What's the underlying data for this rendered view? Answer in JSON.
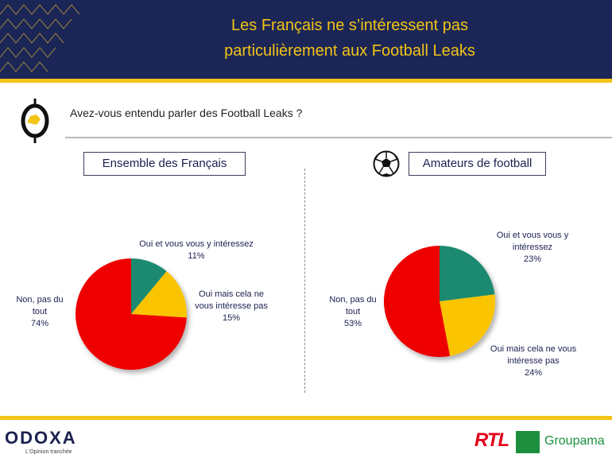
{
  "header": {
    "title_line1": "Les Français ne s’intéressent pas",
    "title_line2": "particulièrement aux Football Leaks",
    "bg_color": "#1b2657",
    "accent_color": "#f3c316"
  },
  "question": {
    "text": "Avez-vous entendu parler des Football Leaks ?",
    "icon": "odoxa-dollar-icon"
  },
  "chart_data": [
    {
      "type": "pie",
      "title": "Ensemble des Français",
      "slices": [
        {
          "label": "Oui et vous vous y intéressez",
          "value": 11,
          "display": "11%",
          "color": "#1f8a70"
        },
        {
          "label": "Oui mais cela ne vous intéresse pas",
          "value": 15,
          "display": "15%",
          "color": "#fbc400"
        },
        {
          "label": "Non, pas du tout",
          "value": 74,
          "display": "74%",
          "color": "#ee0000"
        }
      ]
    },
    {
      "type": "pie",
      "title": "Amateurs de football",
      "icon": "soccer-ball-icon",
      "slices": [
        {
          "label": "Oui et vous vous y intéressez",
          "value": 23,
          "display": "23%",
          "color": "#1f8a70"
        },
        {
          "label": "Oui mais cela ne vous intéresse pas",
          "value": 24,
          "display": "24%",
          "color": "#fbc400"
        },
        {
          "label": "Non, pas du tout",
          "value": 53,
          "display": "53%",
          "color": "#ee0000"
        }
      ]
    }
  ],
  "labels": {
    "left_oui": [
      "Oui et vous vous y intéressez"
    ],
    "left_mais": [
      "Oui mais cela ne",
      "vous intéresse pas"
    ],
    "left_non": [
      "Non, pas du",
      "tout"
    ],
    "right_oui": [
      "Oui et vous vous y",
      "intéressez"
    ],
    "right_mais": [
      "Oui mais cela ne vous",
      "intéresse pas"
    ],
    "right_non": [
      "Non, pas du",
      "tout"
    ]
  },
  "footer": {
    "brand": "ODOXA",
    "tagline": "L'Opinion tranchée",
    "partner1": "RTL",
    "partner2": "Groupama"
  }
}
